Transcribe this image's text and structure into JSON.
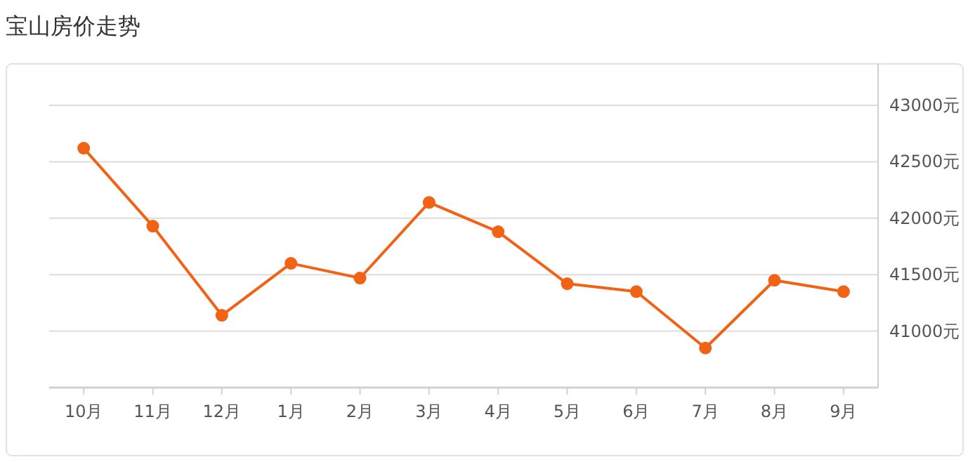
{
  "chart_data": {
    "type": "line",
    "title": "宝山房价走势",
    "categories": [
      "10月",
      "11月",
      "12月",
      "1月",
      "2月",
      "3月",
      "4月",
      "5月",
      "6月",
      "7月",
      "8月",
      "9月"
    ],
    "series": [
      {
        "color": "#f26215",
        "values": [
          42620,
          41930,
          41140,
          41600,
          41470,
          42140,
          41880,
          41420,
          41350,
          40850,
          41450,
          41350
        ]
      }
    ],
    "ylim": [
      40500,
      43000
    ],
    "yticks": [
      {
        "value": 41000,
        "label": "41000元"
      },
      {
        "value": 41500,
        "label": "41500元"
      },
      {
        "value": 42000,
        "label": "42000元"
      },
      {
        "value": 42500,
        "label": "42500元"
      },
      {
        "value": 43000,
        "label": "43000元"
      }
    ],
    "grid": "y",
    "marker": "circle",
    "line_style": "solid"
  }
}
